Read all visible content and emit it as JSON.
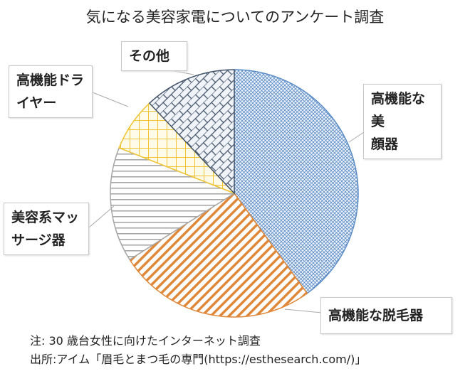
{
  "chart_data": {
    "type": "pie",
    "title": "気になる美容家電についてのアンケート調査",
    "start": "top",
    "direction": "clockwise",
    "slices": [
      {
        "label": "高機能な美顔器",
        "value": 40,
        "color": "#5b8cc6",
        "pattern": "fine-crosshatch"
      },
      {
        "label": "高機能な脱毛器",
        "value": 26,
        "color": "#e0883a",
        "pattern": "diagonal"
      },
      {
        "label": "美容系マッサージ器",
        "value": 15,
        "color": "#a6a6a6",
        "pattern": "horizontal"
      },
      {
        "label": "高機能ドライヤー",
        "value": 7,
        "color": "#f0c330",
        "pattern": "grid"
      },
      {
        "label": "その他",
        "value": 12,
        "color": "#44546a",
        "pattern": "brick"
      }
    ]
  },
  "labels": {
    "s0a": "高機能な美",
    "s0b": "顔器",
    "s1": "高機能な脱毛器",
    "s2a": "美容系マッ",
    "s2b": "サージ器",
    "s3a": "高機能ドラ",
    "s3b": "イヤー",
    "s4": "その他"
  },
  "notes": {
    "note": "注:  30 歳台女性に向けたインターネット調査",
    "source": "出所:アイム「眉毛とまつ毛の専門(https://esthesearch.com/)」"
  }
}
